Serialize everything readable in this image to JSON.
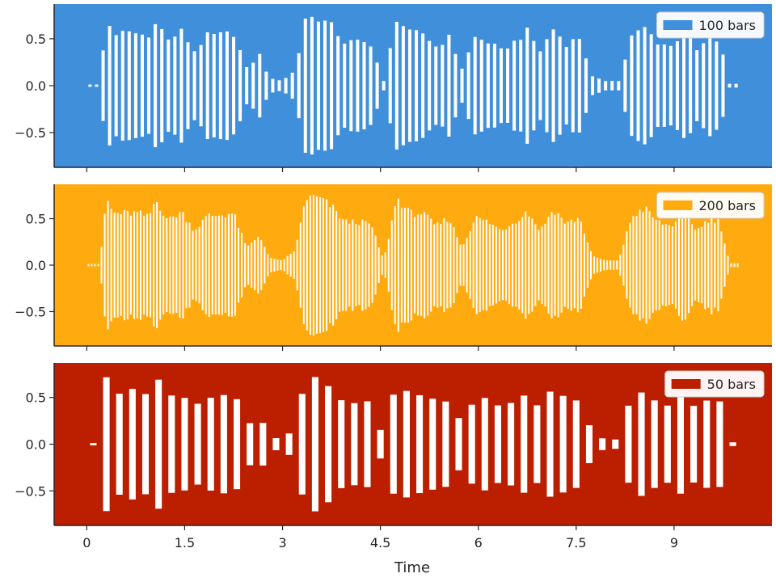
{
  "chart_data": {
    "type": "bar",
    "xlabel": "Time",
    "xlim": [
      -0.5,
      10.5
    ],
    "x_ticks": [
      0,
      1.5,
      3,
      4.5,
      6,
      7.5,
      9
    ],
    "x_tick_labels": [
      "0",
      "1.5",
      "3",
      "4.5",
      "6",
      "7.5",
      "9"
    ],
    "y_ticks": [
      -0.5,
      0.0,
      0.5
    ],
    "y_tick_labels": [
      "−0.5",
      "0.0",
      "0.5"
    ],
    "ylim": [
      -0.87,
      0.87
    ],
    "grid": false,
    "legend_placement": "upper right",
    "bar_color": "#ffffff",
    "envelope": [
      [
        0.0,
        0.0
      ],
      [
        0.2,
        0.0
      ],
      [
        0.25,
        0.4
      ],
      [
        0.3,
        0.78
      ],
      [
        0.4,
        0.6
      ],
      [
        0.6,
        0.6
      ],
      [
        0.8,
        0.6
      ],
      [
        0.95,
        0.55
      ],
      [
        1.05,
        0.76
      ],
      [
        1.25,
        0.52
      ],
      [
        1.45,
        0.62
      ],
      [
        1.65,
        0.4
      ],
      [
        1.85,
        0.57
      ],
      [
        2.05,
        0.58
      ],
      [
        2.25,
        0.6
      ],
      [
        2.45,
        0.2
      ],
      [
        2.65,
        0.35
      ],
      [
        2.8,
        0.08
      ],
      [
        3.0,
        0.05
      ],
      [
        3.2,
        0.18
      ],
      [
        3.35,
        0.78
      ],
      [
        3.55,
        0.78
      ],
      [
        3.75,
        0.68
      ],
      [
        3.95,
        0.5
      ],
      [
        4.15,
        0.5
      ],
      [
        4.35,
        0.48
      ],
      [
        4.55,
        0.05
      ],
      [
        4.75,
        0.78
      ],
      [
        4.95,
        0.6
      ],
      [
        5.15,
        0.6
      ],
      [
        5.35,
        0.45
      ],
      [
        5.55,
        0.55
      ],
      [
        5.75,
        0.2
      ],
      [
        5.95,
        0.55
      ],
      [
        6.15,
        0.5
      ],
      [
        6.35,
        0.4
      ],
      [
        6.55,
        0.5
      ],
      [
        6.75,
        0.62
      ],
      [
        6.95,
        0.4
      ],
      [
        7.15,
        0.65
      ],
      [
        7.35,
        0.48
      ],
      [
        7.55,
        0.55
      ],
      [
        7.75,
        0.1
      ],
      [
        7.95,
        0.05
      ],
      [
        8.15,
        0.05
      ],
      [
        8.35,
        0.56
      ],
      [
        8.55,
        0.66
      ],
      [
        8.75,
        0.5
      ],
      [
        8.95,
        0.45
      ],
      [
        9.15,
        0.62
      ],
      [
        9.35,
        0.4
      ],
      [
        9.55,
        0.55
      ],
      [
        9.7,
        0.5
      ],
      [
        9.85,
        0.02
      ],
      [
        10.0,
        0.02
      ]
    ],
    "panels": [
      {
        "legend": "100 bars",
        "bars": 100,
        "background": "#3f8fdb",
        "patch": "#3f8fdb"
      },
      {
        "legend": "200 bars",
        "bars": 200,
        "background": "#ffab0f",
        "patch": "#ffab0f"
      },
      {
        "legend": "50 bars",
        "bars": 50,
        "background": "#bb1f00",
        "patch": "#bb1f00"
      }
    ]
  }
}
